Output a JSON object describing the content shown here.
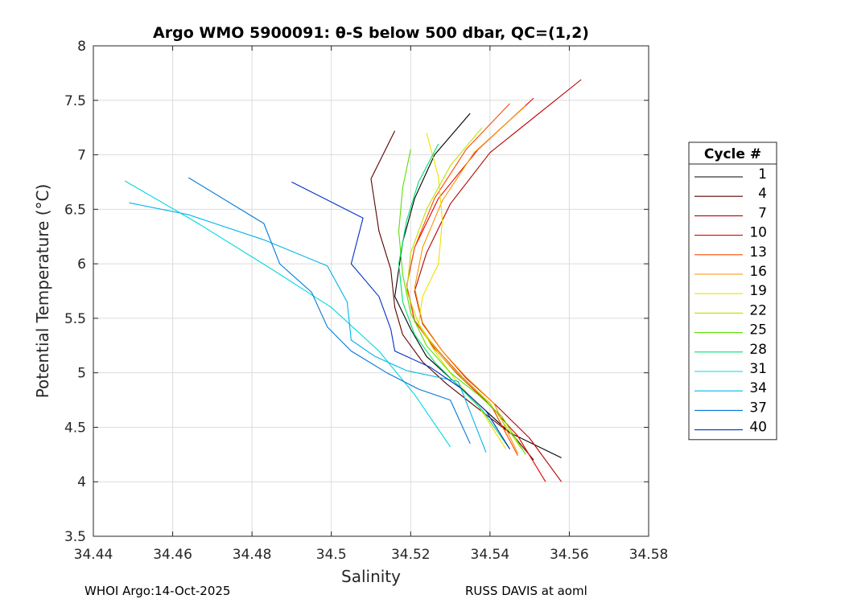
{
  "chart_data": {
    "type": "line",
    "title": "Argo WMO 5900091: θ-S below 500 dbar,  QC=(1,2)",
    "xlabel": "Salinity",
    "ylabel": "Potential Temperature (°C)",
    "xlim": [
      34.44,
      34.58
    ],
    "ylim": [
      3.5,
      8
    ],
    "xticks": [
      34.44,
      34.46,
      34.48,
      34.5,
      34.52,
      34.54,
      34.56,
      34.58
    ],
    "xtick_labels": [
      "34.44",
      "34.46",
      "34.48",
      "34.5",
      "34.52",
      "34.54",
      "34.56",
      "34.58"
    ],
    "yticks": [
      3.5,
      4,
      4.5,
      5,
      5.5,
      6,
      6.5,
      7,
      7.5,
      8
    ],
    "ytick_labels": [
      "3.5",
      "4",
      "4.5",
      "5",
      "5.5",
      "6",
      "6.5",
      "7",
      "7.5",
      "8"
    ],
    "grid": true,
    "legend_title": "Cycle #",
    "legend_position": "outside-right",
    "series": [
      {
        "name": "1",
        "color": "#000000",
        "x": [
          34.535,
          34.526,
          34.521,
          34.518,
          34.516,
          34.52,
          34.524,
          34.53,
          34.536,
          34.545,
          34.558
        ],
        "y": [
          7.38,
          7.0,
          6.6,
          6.2,
          5.7,
          5.4,
          5.15,
          4.95,
          4.75,
          4.45,
          4.22
        ]
      },
      {
        "name": "4",
        "color": "#5a0000",
        "x": [
          34.516,
          34.51,
          34.512,
          34.515,
          34.516,
          34.518,
          34.523,
          34.529,
          34.536,
          34.546,
          34.551
        ],
        "y": [
          7.22,
          6.78,
          6.3,
          5.95,
          5.6,
          5.35,
          5.1,
          4.9,
          4.7,
          4.42,
          4.2
        ]
      },
      {
        "name": "7",
        "color": "#b40000",
        "x": [
          34.563,
          34.54,
          34.53,
          34.524,
          34.521,
          34.523,
          34.528,
          34.534,
          34.541,
          34.55,
          34.558
        ],
        "y": [
          7.69,
          7.02,
          6.55,
          6.1,
          5.75,
          5.45,
          5.2,
          4.95,
          4.72,
          4.4,
          4.0
        ]
      },
      {
        "name": "10",
        "color": "#e60000",
        "x": [
          34.551,
          34.537,
          34.527,
          34.521,
          34.519,
          34.521,
          34.526,
          34.532,
          34.539,
          34.547,
          34.554
        ],
        "y": [
          7.52,
          7.05,
          6.6,
          6.15,
          5.8,
          5.48,
          5.22,
          4.98,
          4.74,
          4.42,
          4.0
        ]
      },
      {
        "name": "13",
        "color": "#ff4a00",
        "x": [
          34.545,
          34.534,
          34.526,
          34.521,
          34.519,
          34.521,
          34.527,
          34.533,
          34.54,
          34.547
        ],
        "y": [
          7.47,
          7.05,
          6.6,
          6.15,
          5.8,
          5.47,
          5.2,
          4.96,
          4.72,
          4.24
        ]
      },
      {
        "name": "16",
        "color": "#ff9200",
        "x": [
          34.549,
          34.536,
          34.528,
          34.523,
          34.521,
          34.523,
          34.528,
          34.534,
          34.541,
          34.547
        ],
        "y": [
          7.45,
          7.02,
          6.58,
          6.15,
          5.78,
          5.46,
          5.2,
          4.96,
          4.72,
          4.26
        ]
      },
      {
        "name": "19",
        "color": "#f0e000",
        "x": [
          34.524,
          34.527,
          34.528,
          34.527,
          34.523,
          34.522,
          34.526,
          34.531,
          34.537,
          34.544
        ],
        "y": [
          7.2,
          6.8,
          6.4,
          6.0,
          5.7,
          5.45,
          5.2,
          4.95,
          4.7,
          4.3
        ]
      },
      {
        "name": "22",
        "color": "#b8e400",
        "x": [
          34.538,
          34.53,
          34.524,
          34.52,
          34.519,
          34.522,
          34.527,
          34.533,
          34.54,
          34.548
        ],
        "y": [
          7.25,
          6.9,
          6.5,
          6.1,
          5.75,
          5.45,
          5.18,
          4.95,
          4.72,
          4.3
        ]
      },
      {
        "name": "25",
        "color": "#5ae000",
        "x": [
          34.52,
          34.518,
          34.517,
          34.518,
          34.52,
          34.524,
          34.53,
          34.537,
          34.543,
          34.549
        ],
        "y": [
          7.05,
          6.7,
          6.3,
          5.9,
          5.55,
          5.25,
          5.0,
          4.8,
          4.6,
          4.25
        ]
      },
      {
        "name": "28",
        "color": "#00e070",
        "x": [
          34.527,
          34.522,
          34.519,
          34.517,
          34.518,
          34.521,
          34.526,
          34.532,
          34.538,
          34.545
        ],
        "y": [
          7.1,
          6.75,
          6.4,
          6.0,
          5.65,
          5.35,
          5.1,
          4.88,
          4.66,
          4.3
        ]
      },
      {
        "name": "31",
        "color": "#00d8e0",
        "x": [
          34.448,
          34.466,
          34.485,
          34.5,
          34.512,
          34.521,
          34.53
        ],
        "y": [
          6.76,
          6.38,
          5.95,
          5.6,
          5.2,
          4.8,
          4.32
        ]
      },
      {
        "name": "34",
        "color": "#00b4e8",
        "x": [
          34.449,
          34.464,
          34.483,
          34.499,
          34.504,
          34.505,
          34.511,
          34.519,
          34.532,
          34.539
        ],
        "y": [
          6.56,
          6.45,
          6.22,
          5.98,
          5.65,
          5.3,
          5.15,
          5.02,
          4.92,
          4.27
        ]
      },
      {
        "name": "37",
        "color": "#0078d8",
        "x": [
          34.464,
          34.483,
          34.487,
          34.495,
          34.499,
          34.505,
          34.514,
          34.522,
          34.53,
          34.535
        ],
        "y": [
          6.79,
          6.37,
          6.0,
          5.74,
          5.42,
          5.2,
          5.0,
          4.85,
          4.75,
          4.35
        ]
      },
      {
        "name": "40",
        "color": "#0030c8",
        "x": [
          34.49,
          34.508,
          34.505,
          34.512,
          34.515,
          34.516,
          34.525,
          34.533,
          34.539,
          34.545
        ],
        "y": [
          6.75,
          6.42,
          6.0,
          5.7,
          5.4,
          5.2,
          5.05,
          4.85,
          4.65,
          4.3
        ]
      }
    ]
  },
  "footer": {
    "left": "WHOI Argo:14-Oct-2025",
    "right": "RUSS DAVIS at aoml"
  }
}
